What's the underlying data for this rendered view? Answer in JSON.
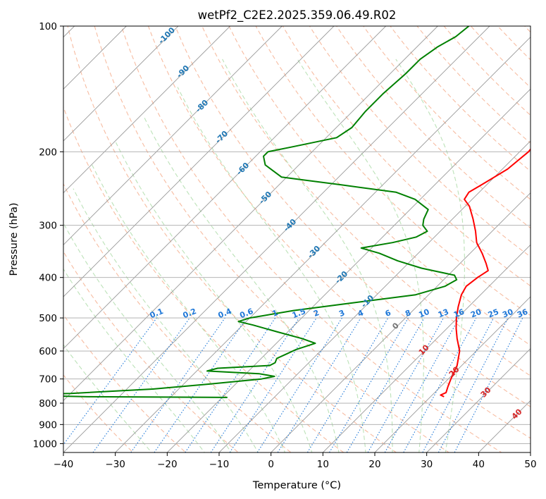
{
  "chart_data": {
    "type": "line",
    "title": "wetPf2_C2E2.2025.359.06.49.R02",
    "xlabel": "Temperature (°C)",
    "ylabel": "Pressure (hPa)",
    "xlim": [
      -40,
      50
    ],
    "ylim": [
      1050,
      100
    ],
    "y_scale": "log",
    "grid": true,
    "x_ticks": [
      -40,
      -30,
      -20,
      -10,
      0,
      10,
      20,
      30,
      40,
      50
    ],
    "x_tick_labels": [
      "−40",
      "−30",
      "−20",
      "−10",
      "0",
      "10",
      "20",
      "30",
      "40",
      "50"
    ],
    "y_ticks": [
      100,
      200,
      300,
      400,
      500,
      600,
      700,
      800,
      900,
      1000
    ],
    "y_tick_labels": [
      "100",
      "200",
      "300",
      "400",
      "500",
      "600",
      "700",
      "800",
      "900",
      "1000"
    ],
    "isotherm_labels": [
      {
        "value": -100,
        "text": "-100"
      },
      {
        "value": -90,
        "text": "-90"
      },
      {
        "value": -80,
        "text": "-80"
      },
      {
        "value": -70,
        "text": "-70"
      },
      {
        "value": -60,
        "text": "-60"
      },
      {
        "value": -50,
        "text": "-50"
      },
      {
        "value": -40,
        "text": "-40"
      },
      {
        "value": -30,
        "text": "-30"
      },
      {
        "value": -20,
        "text": "-20"
      },
      {
        "value": -10,
        "text": "-10"
      },
      {
        "value": 0,
        "text": "0"
      },
      {
        "value": 10,
        "text": "10"
      },
      {
        "value": 20,
        "text": "20"
      },
      {
        "value": 30,
        "text": "30"
      },
      {
        "value": 40,
        "text": "40"
      }
    ],
    "mixing_ratio_labels": [
      "0.1",
      "0.2",
      "0.4",
      "0.6",
      "1",
      "1.5",
      "2",
      "3",
      "4",
      "6",
      "8",
      "10",
      "13",
      "16",
      "20",
      "25",
      "30",
      "36"
    ],
    "series": [
      {
        "color": "#ff0000",
        "points": [
          [
            772,
            22.6
          ],
          [
            765,
            21.6
          ],
          [
            755,
            22.2
          ],
          [
            730,
            21.4
          ],
          [
            700,
            20.5
          ],
          [
            650,
            19.1
          ],
          [
            600,
            16.8
          ],
          [
            560,
            13.9
          ],
          [
            530,
            11.8
          ],
          [
            500,
            9.8
          ],
          [
            470,
            8.0
          ],
          [
            440,
            6.3
          ],
          [
            420,
            5.6
          ],
          [
            400,
            6.1
          ],
          [
            385,
            6.8
          ],
          [
            370,
            5.0
          ],
          [
            350,
            2.3
          ],
          [
            330,
            -0.8
          ],
          [
            310,
            -3.2
          ],
          [
            290,
            -6.0
          ],
          [
            270,
            -9.2
          ],
          [
            260,
            -11.5
          ],
          [
            250,
            -12.0
          ],
          [
            240,
            -11.0
          ],
          [
            220,
            -9.0
          ],
          [
            200,
            -8.3
          ],
          [
            185,
            -8.8
          ],
          [
            170,
            -11.2
          ],
          [
            155,
            -13.8
          ],
          [
            140,
            -16.0
          ],
          [
            125,
            -17.8
          ],
          [
            115,
            -20.0
          ],
          [
            108,
            -24.0
          ],
          [
            104,
            -27.5
          ],
          [
            100,
            -30.5
          ]
        ]
      },
      {
        "color": "#008000",
        "points": [
          [
            775,
            -19.0
          ],
          [
            772,
            -46.0
          ],
          [
            765,
            -62.0
          ],
          [
            758,
            -50.0
          ],
          [
            740,
            -35.0
          ],
          [
            720,
            -25.0
          ],
          [
            700,
            -16.0
          ],
          [
            690,
            -14.0
          ],
          [
            680,
            -17.5
          ],
          [
            670,
            -28.0
          ],
          [
            660,
            -26.5
          ],
          [
            650,
            -17.0
          ],
          [
            640,
            -16.5
          ],
          [
            625,
            -17.0
          ],
          [
            610,
            -16.0
          ],
          [
            595,
            -15.0
          ],
          [
            575,
            -12.5
          ],
          [
            560,
            -16.0
          ],
          [
            540,
            -22.0
          ],
          [
            520,
            -28.0
          ],
          [
            510,
            -31.5
          ],
          [
            500,
            -30.0
          ],
          [
            480,
            -23.0
          ],
          [
            460,
            -13.0
          ],
          [
            440,
            -2.5
          ],
          [
            420,
            1.5
          ],
          [
            405,
            2.5
          ],
          [
            395,
            1.2
          ],
          [
            380,
            -6.5
          ],
          [
            365,
            -12.5
          ],
          [
            350,
            -17.5
          ],
          [
            340,
            -22.0
          ],
          [
            330,
            -17.0
          ],
          [
            320,
            -13.5
          ],
          [
            310,
            -12.5
          ],
          [
            300,
            -14.5
          ],
          [
            290,
            -15.5
          ],
          [
            275,
            -16.5
          ],
          [
            260,
            -21.0
          ],
          [
            250,
            -26.0
          ],
          [
            240,
            -38.0
          ],
          [
            230,
            -51.0
          ],
          [
            215,
            -56.5
          ],
          [
            205,
            -58.5
          ],
          [
            200,
            -58.5
          ],
          [
            195,
            -55.0
          ],
          [
            185,
            -48.0
          ],
          [
            175,
            -47.0
          ],
          [
            160,
            -47.5
          ],
          [
            145,
            -47.5
          ],
          [
            130,
            -47.0
          ],
          [
            120,
            -47.0
          ],
          [
            112,
            -46.0
          ],
          [
            106,
            -44.5
          ],
          [
            100,
            -44.0
          ]
        ]
      }
    ]
  }
}
